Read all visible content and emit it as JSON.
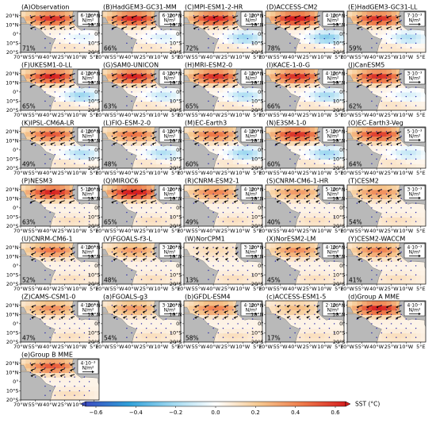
{
  "figure": {
    "x_ticks": [
      "70°W",
      "55°W",
      "40°W",
      "25°W",
      "10°W",
      "5°E"
    ],
    "y_ticks": [
      "20°N",
      "10°N",
      "0°",
      "10°S",
      "20°S"
    ],
    "colorbar": {
      "label": "SST (°C)",
      "range": [
        -0.6,
        0.6
      ],
      "ticks": [
        "−0.6",
        "−0.4",
        "−0.2",
        "0.0",
        "0.2",
        "0.4",
        "0.6"
      ]
    }
  },
  "chart_data": {
    "type": "heatmap",
    "panels": [
      {
        "title": "(A)Observation",
        "pct": "71%",
        "ref_value": "6·10⁻³",
        "ref_unit": "N/m²",
        "warm": 0.85,
        "cool": 0.25
      },
      {
        "title": "(B)HadGEM3-GC31-MM",
        "pct": "66%",
        "ref_value": "6·10⁻³",
        "ref_unit": "N/m²",
        "warm": 0.9,
        "cool": 0.3
      },
      {
        "title": "(C)MPI-ESM1-2-HR",
        "pct": "72%",
        "ref_value": "4·10⁻³",
        "ref_unit": "N/m²",
        "warm": 0.9,
        "cool": 0.6
      },
      {
        "title": "(D)ACCESS-CM2",
        "pct": "78%",
        "ref_value": "4·10⁻³",
        "ref_unit": "N/m²",
        "warm": 1.0,
        "cool": 0.7
      },
      {
        "title": "(E)HadGEM3-GC31-LL",
        "pct": "59%",
        "ref_value": "7·10⁻³",
        "ref_unit": "N/m²",
        "warm": 0.85,
        "cool": 0.5
      },
      {
        "title": "(F)UKESM1-0-LL",
        "pct": "65%",
        "ref_value": "4·10⁻³",
        "ref_unit": "N/m²",
        "warm": 0.9,
        "cool": 0.6
      },
      {
        "title": "(G)SAM0-UNICON",
        "pct": "63%",
        "ref_value": "4·10⁻³",
        "ref_unit": "N/m²",
        "warm": 0.9,
        "cool": 0.4
      },
      {
        "title": "(H)MRI-ESM2-0",
        "pct": "65%",
        "ref_value": "4·10⁻³",
        "ref_unit": "N/m²",
        "warm": 0.85,
        "cool": 0.5
      },
      {
        "title": "(I)KACE-1-0-G",
        "pct": "66%",
        "ref_value": "4·10⁻³",
        "ref_unit": "N/m²",
        "warm": 0.85,
        "cool": 0.55
      },
      {
        "title": "(J)CanESM5",
        "pct": "62%",
        "ref_value": "3·10⁻³",
        "ref_unit": "N/m²",
        "warm": 0.85,
        "cool": 0.3
      },
      {
        "title": "(K)IPSL-CM6A-LR",
        "pct": "49%",
        "ref_value": "4·10⁻³",
        "ref_unit": "N/m²",
        "warm": 0.7,
        "cool": 0.5
      },
      {
        "title": "(L)FIO-ESM-2-0",
        "pct": "48%",
        "ref_value": "4·10⁻³",
        "ref_unit": "N/m²",
        "warm": 0.6,
        "cool": 0.5
      },
      {
        "title": "(M)EC-Earth3",
        "pct": "60%",
        "ref_value": "4·10⁻³",
        "ref_unit": "N/m²",
        "warm": 0.6,
        "cool": 0.6
      },
      {
        "title": "(N)E3SM-1-0",
        "pct": "60%",
        "ref_value": "5·10⁻³",
        "ref_unit": "N/m²",
        "warm": 0.85,
        "cool": 0.6
      },
      {
        "title": "(O)EC-Earth3-Veg",
        "pct": "64%",
        "ref_value": "5·10⁻³",
        "ref_unit": "N/m²",
        "warm": 0.8,
        "cool": 0.4
      },
      {
        "title": "(P)NESM3",
        "pct": "63%",
        "ref_value": "5·10⁻³",
        "ref_unit": "N/m²",
        "warm": 0.9,
        "cool": 0.0
      },
      {
        "title": "(Q)MIROC6",
        "pct": "65%",
        "ref_value": "4·10⁻³",
        "ref_unit": "N/m²",
        "warm": 1.0,
        "cool": 0.0
      },
      {
        "title": "(R)CNRM-ESM2-1",
        "pct": "49%",
        "ref_value": "4·10⁻³",
        "ref_unit": "N/m²",
        "warm": 0.55,
        "cool": 0.0
      },
      {
        "title": "(S)CNRM-CM6-1-HR",
        "pct": "40%",
        "ref_value": "5·10⁻³",
        "ref_unit": "N/m²",
        "warm": 0.45,
        "cool": 0.0
      },
      {
        "title": "(T)CESM2",
        "pct": "54%",
        "ref_value": "3·10⁻³",
        "ref_unit": "N/m²",
        "warm": 0.5,
        "cool": 0.0
      },
      {
        "title": "(U)CNRM-CM6-1",
        "pct": "52%",
        "ref_value": "4·10⁻³",
        "ref_unit": "N/m²",
        "warm": 0.6,
        "cool": 0.0
      },
      {
        "title": "(V)FGOALS-f3-L",
        "pct": "48%",
        "ref_value": "3·10⁻³",
        "ref_unit": "N/m²",
        "warm": 0.45,
        "cool": 0.0
      },
      {
        "title": "(W)NorCPM1",
        "pct": "13%",
        "ref_value": "3·10⁻³",
        "ref_unit": "N/m²",
        "warm": 0.15,
        "cool": 0.0
      },
      {
        "title": "(X)NorESM2-LM",
        "pct": "45%",
        "ref_value": "4·10⁻³",
        "ref_unit": "N/m²",
        "warm": 0.5,
        "cool": 0.0
      },
      {
        "title": "(Y)CESM2-WACCM",
        "pct": "41%",
        "ref_value": "4·10⁻³",
        "ref_unit": "N/m²",
        "warm": 0.55,
        "cool": 0.0
      },
      {
        "title": "(Z)CAMS-CSM1-0",
        "pct": "47%",
        "ref_value": "4·10⁻³",
        "ref_unit": "N/m²",
        "warm": 0.5,
        "cool": 0.0
      },
      {
        "title": "(a)FGOALS-g3",
        "pct": "54%",
        "ref_value": "3·10⁻³",
        "ref_unit": "N/m²",
        "warm": 0.45,
        "cool": 0.0
      },
      {
        "title": "(b)GFDL-ESM4",
        "pct": "58%",
        "ref_value": "4·10⁻³",
        "ref_unit": "N/m²",
        "warm": 0.55,
        "cool": 0.0
      },
      {
        "title": "(c)ACCESS-ESM1-5",
        "pct": "17%",
        "ref_value": "2·10⁻³",
        "ref_unit": "N/m²",
        "warm": 0.3,
        "cool": 0.0
      },
      {
        "title": "(d)Group A MME",
        "pct": "",
        "ref_value": "4·10⁻³",
        "ref_unit": "N/m²",
        "warm": 0.9,
        "cool": 0.0
      },
      {
        "title": "(e)Group B MME",
        "pct": "",
        "ref_value": "4·10⁻³",
        "ref_unit": "N/m²",
        "warm": 0.7,
        "cool": 0.0
      }
    ]
  }
}
